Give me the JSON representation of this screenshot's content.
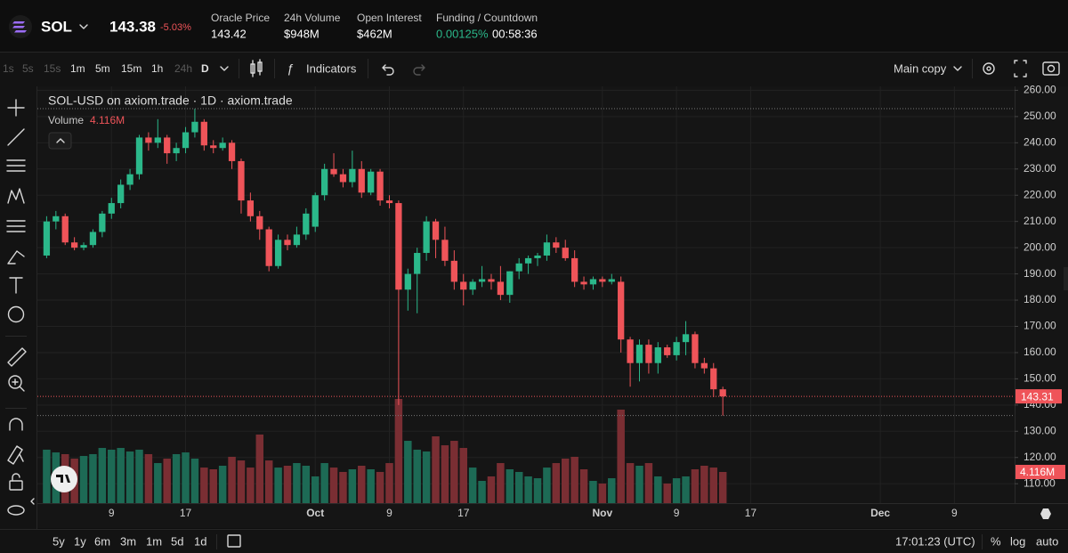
{
  "header": {
    "symbol": "SOL",
    "price": "143.38",
    "change": "-5.03%",
    "stats": [
      {
        "label": "Oracle Price",
        "value": "143.42"
      },
      {
        "label": "24h Volume",
        "value": "$948M"
      },
      {
        "label": "Open Interest",
        "value": "$462M"
      },
      {
        "label": "Funding / Countdown",
        "value": "0.00125%",
        "extra": "00:58:36"
      }
    ]
  },
  "toolbar": {
    "intervals": [
      "1s",
      "5s",
      "15s",
      "1m",
      "5m",
      "15m",
      "1h",
      "24h",
      "D"
    ],
    "indicators": "Indicators",
    "layout": "Main copy"
  },
  "chart_data": {
    "type": "candlestick",
    "title": "SOL-USD on axiom.trade · 1D · axiom.trade",
    "volume_name": "Volume",
    "volume_last_label": "4.116M",
    "up_color": "#2bb88a",
    "down_color": "#ef5459",
    "volume_up_color": "#1d6a55",
    "volume_down_color": "#7a2e33",
    "open": [
      197,
      210,
      212,
      202,
      200,
      201,
      206,
      213,
      217,
      224,
      228,
      242,
      240,
      242,
      236,
      238,
      244,
      248,
      239,
      238,
      240,
      233,
      218,
      212,
      207,
      193,
      203,
      201,
      205,
      208,
      220,
      230,
      228,
      225,
      230,
      221,
      229,
      218,
      217,
      184,
      190,
      198,
      210,
      203,
      195,
      187,
      184,
      187,
      188,
      187,
      182,
      191,
      194,
      196,
      197,
      202,
      200,
      196,
      187,
      186,
      188,
      187,
      187,
      165,
      156,
      163,
      156,
      162,
      159,
      164,
      167,
      156,
      154,
      146
    ],
    "high": [
      212,
      214,
      213,
      204,
      202,
      207,
      214,
      219,
      226,
      230,
      243,
      244,
      249,
      243,
      240,
      246,
      253,
      249,
      241,
      242,
      241,
      234,
      221,
      214,
      208,
      205,
      205,
      208,
      215,
      221,
      232,
      236,
      230,
      237,
      233,
      230,
      230,
      220,
      218,
      192,
      200,
      212,
      211,
      208,
      199,
      190,
      188,
      193,
      190,
      193,
      191,
      196,
      197,
      198,
      205,
      204,
      203,
      199,
      189,
      189,
      189,
      190,
      189,
      166,
      165,
      165,
      164,
      163,
      166,
      172,
      168,
      158,
      156,
      147
    ],
    "low": [
      196,
      207,
      201,
      199,
      199,
      200,
      204,
      211,
      215,
      222,
      226,
      237,
      238,
      232,
      233,
      236,
      242,
      237,
      236,
      237,
      230,
      213,
      210,
      203,
      191,
      192,
      199,
      200,
      203,
      206,
      218,
      227,
      223,
      223,
      219,
      220,
      216,
      215,
      140,
      176,
      175,
      195,
      196,
      193,
      184,
      178,
      182,
      185,
      184,
      180,
      179,
      188,
      190,
      193,
      195,
      198,
      195,
      185,
      184,
      184,
      185,
      186,
      160,
      147,
      149,
      152,
      152,
      158,
      157,
      159,
      154,
      152,
      143,
      136
    ],
    "close": [
      210,
      212,
      202,
      200,
      201,
      206,
      213,
      217,
      224,
      228,
      242,
      240,
      242,
      236,
      238,
      244,
      248,
      239,
      238,
      240,
      233,
      218,
      212,
      207,
      193,
      203,
      201,
      205,
      213,
      220,
      230,
      228,
      225,
      230,
      221,
      229,
      218,
      217,
      184,
      190,
      198,
      210,
      203,
      195,
      187,
      184,
      187,
      188,
      187,
      182,
      191,
      194,
      196,
      197,
      202,
      200,
      196,
      187,
      186,
      188,
      187,
      188,
      165,
      156,
      163,
      156,
      162,
      159,
      164,
      167,
      156,
      154,
      146,
      143.31
    ],
    "volume": [
      7.06,
      6.7,
      6.47,
      5.88,
      6.23,
      6.47,
      7.29,
      7.06,
      7.29,
      6.82,
      7.06,
      6.47,
      5.29,
      5.88,
      6.47,
      6.7,
      5.88,
      4.7,
      4.47,
      4.94,
      6.12,
      5.64,
      4.7,
      9.06,
      5.64,
      4.7,
      4.94,
      5.29,
      4.94,
      3.53,
      5.29,
      4.7,
      4.12,
      4.47,
      4.94,
      4.47,
      4.12,
      5.29,
      13.76,
      8.23,
      7.06,
      6.82,
      8.82,
      7.64,
      8.23,
      7.29,
      4.7,
      2.94,
      3.53,
      5.29,
      4.47,
      4.12,
      3.53,
      3.29,
      4.7,
      5.29,
      5.88,
      6.12,
      4.47,
      2.94,
      2.59,
      3.29,
      12.35,
      5.29,
      4.94,
      5.29,
      3.53,
      2.59,
      3.29,
      3.53,
      4.47,
      4.94,
      4.7,
      4.116
    ],
    "xlim": [
      -1,
      104.5
    ],
    "ylim": [
      102.6,
      261.5
    ],
    "xticks": [
      {
        "value": 7,
        "label": "9"
      },
      {
        "value": 15,
        "label": "17"
      },
      {
        "value": 29,
        "label": "Oct"
      },
      {
        "value": 37,
        "label": "9"
      },
      {
        "value": 45,
        "label": "17"
      },
      {
        "value": 60,
        "label": "Nov"
      },
      {
        "value": 68,
        "label": "9"
      },
      {
        "value": 76,
        "label": "17"
      },
      {
        "value": 90,
        "label": "Dec"
      },
      {
        "value": 98,
        "label": "9"
      }
    ],
    "yticks": [
      {
        "value": 110,
        "label": "110.00"
      },
      {
        "value": 120,
        "label": "120.00"
      },
      {
        "value": 130,
        "label": "130.00"
      },
      {
        "value": 140,
        "label": "140.00"
      },
      {
        "value": 150,
        "label": "150.00"
      },
      {
        "value": 160,
        "label": "160.00"
      },
      {
        "value": 170,
        "label": "170.00"
      },
      {
        "value": 180,
        "label": "180.00"
      },
      {
        "value": 190,
        "label": "190.00"
      },
      {
        "value": 200,
        "label": "200.00"
      },
      {
        "value": 210,
        "label": "210.00"
      },
      {
        "value": 220,
        "label": "220.00"
      },
      {
        "value": 230,
        "label": "230.00"
      },
      {
        "value": 240,
        "label": "240.00"
      },
      {
        "value": 250,
        "label": "250.00"
      },
      {
        "value": 260,
        "label": "260.00"
      }
    ],
    "grid": true
  },
  "bottom": {
    "ranges": [
      "5y",
      "1y",
      "6m",
      "3m",
      "1m",
      "5d",
      "1d"
    ],
    "time": "17:01:23 (UTC)",
    "options": [
      "%",
      "log",
      "auto"
    ]
  }
}
